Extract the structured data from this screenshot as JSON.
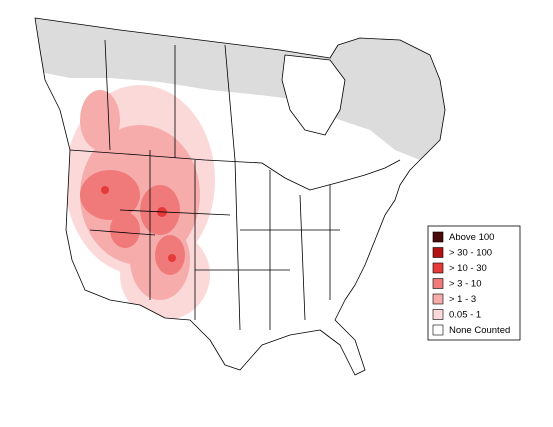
{
  "legend": {
    "items": [
      {
        "label": "Above 100",
        "color": "#4a0a0a"
      },
      {
        "label": "> 30 - 100",
        "color": "#b31212"
      },
      {
        "label": "> 10 - 30",
        "color": "#e43a3a"
      },
      {
        "label": "> 3 - 10",
        "color": "#f07a7a"
      },
      {
        "label": "> 1 - 3",
        "color": "#f7acac"
      },
      {
        "label": "0.05 - 1",
        "color": "#fbd9d9"
      },
      {
        "label": "None Counted",
        "color": "#ffffff"
      }
    ]
  }
}
